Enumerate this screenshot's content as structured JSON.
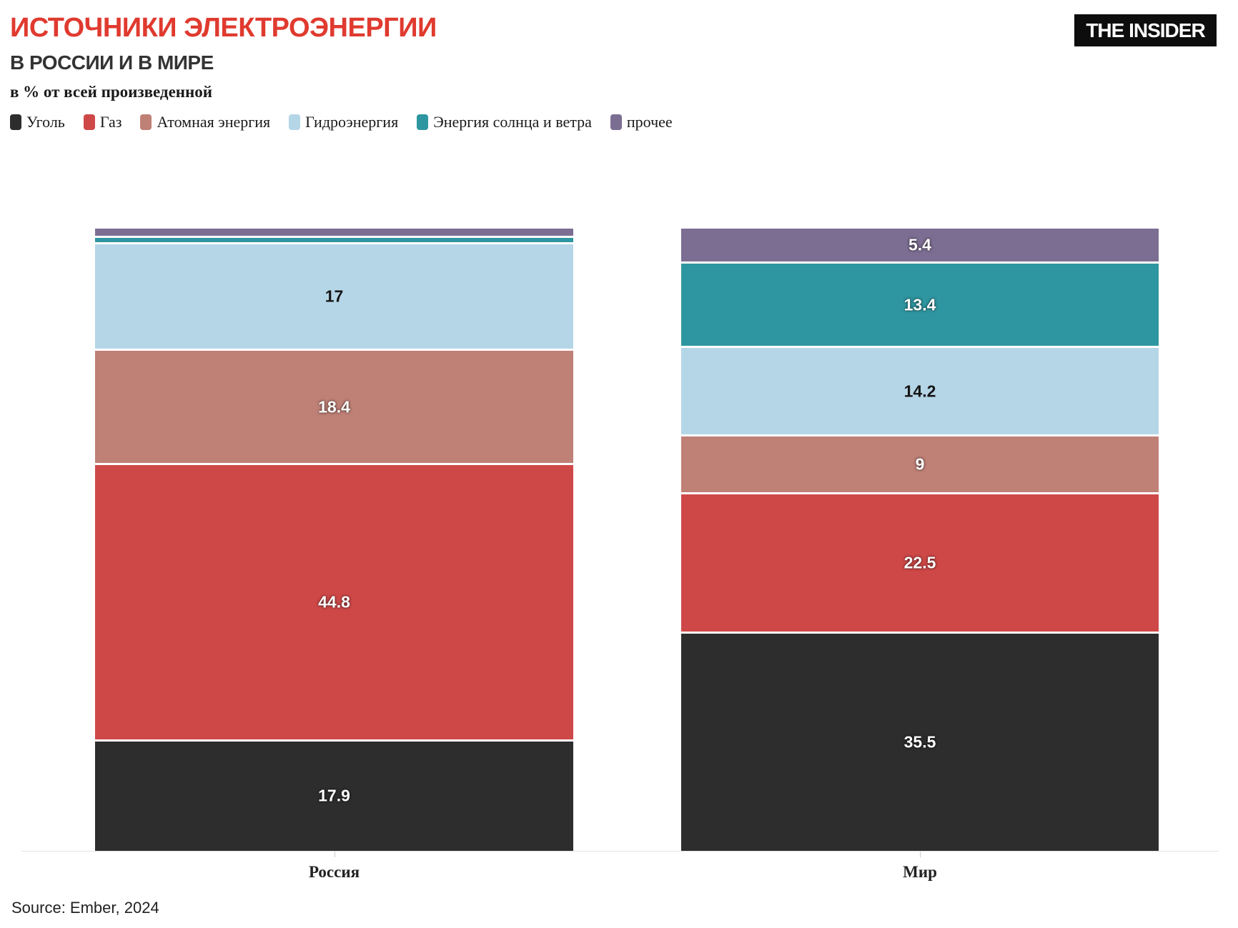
{
  "header": {
    "title": "ИСТОЧНИКИ ЭЛЕКТРОЭНЕРГИИ",
    "subtitle": "В РОССИИ И В МИРЕ",
    "unit_label": "в % от всей произведенной",
    "logo_text": "THE INSIDER"
  },
  "colors": {
    "title_accent": "#e03a2f",
    "coal": "#2e2d2e",
    "gas": "#cf4848",
    "nuclear": "#bf8076",
    "hydro": "#b5d6e7",
    "wind_solar": "#2e96a0",
    "other": "#7c6e92",
    "axis_line": "#e4e4e4"
  },
  "chart_data": {
    "type": "bar",
    "stacked": true,
    "categories": [
      "Россия",
      "Мир"
    ],
    "series": [
      {
        "name": "Уголь",
        "color": "#2e2d2e",
        "values": [
          17.9,
          35.5
        ]
      },
      {
        "name": "Газ",
        "color": "#cf4848",
        "values": [
          44.8,
          22.5
        ]
      },
      {
        "name": "Атомная энергия",
        "color": "#bf8076",
        "values": [
          18.4,
          9
        ]
      },
      {
        "name": "Гидроэнергия",
        "color": "#b5d6e7",
        "values": [
          17,
          14.2
        ]
      },
      {
        "name": "Энергия солнца и ветра",
        "color": "#2e96a0",
        "values": [
          0.7,
          13.4
        ]
      },
      {
        "name": "прочее",
        "color": "#7c6e92",
        "values": [
          1.2,
          5.4
        ]
      }
    ],
    "display_labels": [
      [
        "17.9",
        "44.8",
        "18.4",
        "17",
        "",
        ""
      ],
      [
        "35.5",
        "22.5",
        "9",
        "14.2",
        "13.4",
        "5.4"
      ]
    ],
    "title": "ИСТОЧНИКИ ЭЛЕКТРОЭНЕРГИИ В РОССИИ И В МИРЕ",
    "ylabel": "в % от всей произведенной",
    "ylim": [
      0,
      100
    ],
    "grid": false,
    "legend_position": "top"
  },
  "footer": {
    "source": "Source: Ember, 2024"
  }
}
